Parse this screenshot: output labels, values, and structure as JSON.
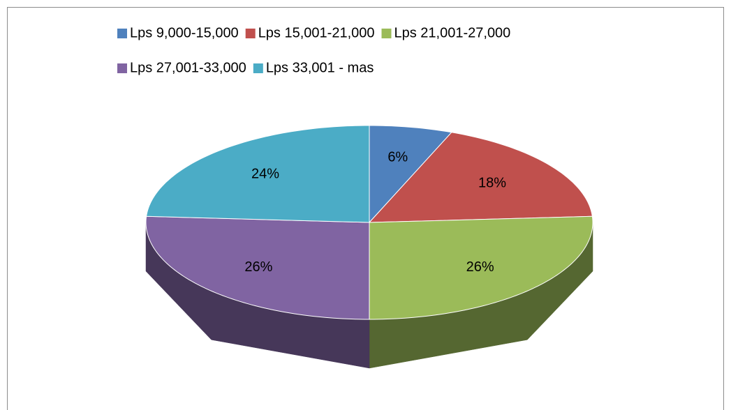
{
  "chart_data": {
    "type": "pie",
    "view": "3d",
    "categories": [
      "Lps 9,000-15,000",
      "Lps 15,001-21,000",
      "Lps 21,001-27,000",
      "Lps 27,001-33,000",
      "Lps 33,001 - mas"
    ],
    "values": [
      6,
      18,
      26,
      26,
      24
    ],
    "value_labels": [
      "6%",
      "18%",
      "26%",
      "26%",
      "24%"
    ],
    "colors": [
      "#4f81bd",
      "#c0504d",
      "#9bbb59",
      "#8064a2",
      "#4bacc6"
    ],
    "legend": "top"
  }
}
